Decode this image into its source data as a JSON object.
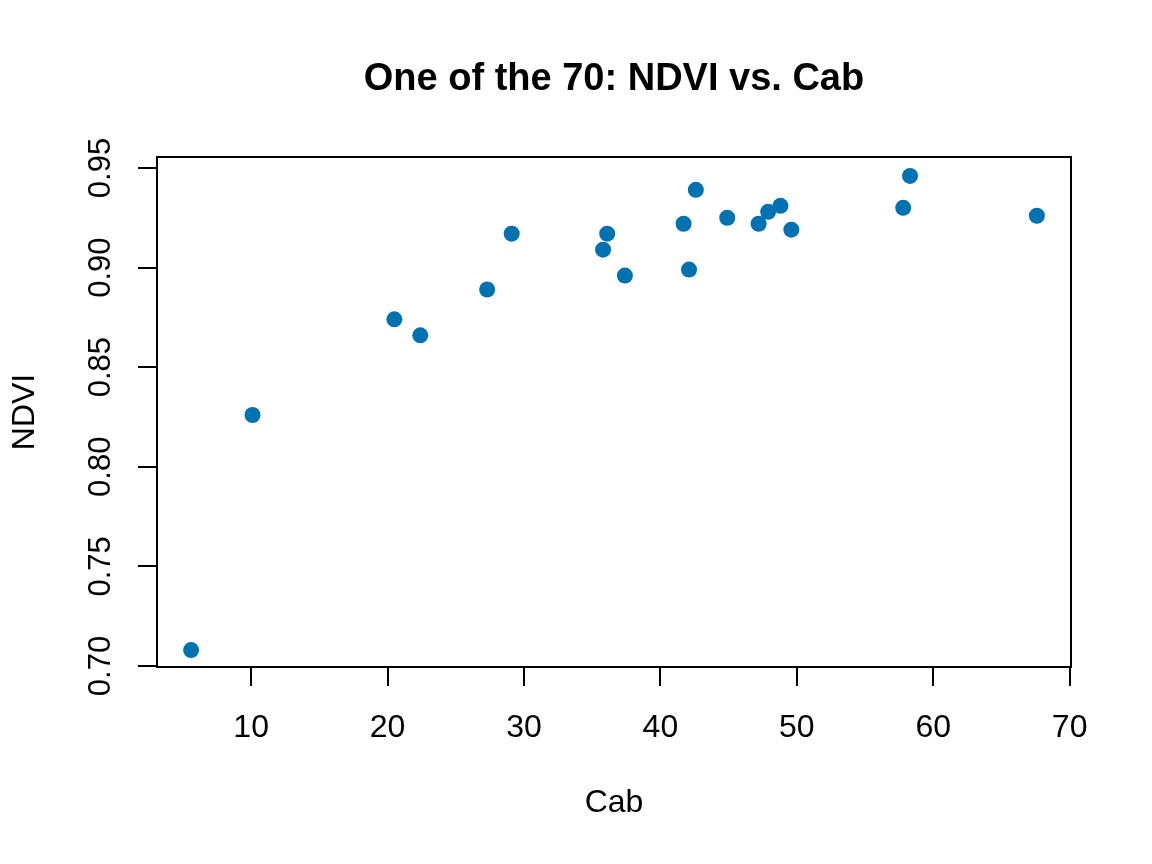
{
  "chart_data": {
    "type": "scatter",
    "title": "One of the 70: NDVI vs. Cab",
    "xlabel": "Cab",
    "ylabel": "NDVI",
    "x": [
      5.6,
      10.1,
      20.5,
      22.4,
      27.3,
      29.1,
      35.8,
      36.1,
      37.4,
      41.7,
      42.1,
      42.6,
      44.9,
      47.2,
      47.9,
      48.8,
      49.6,
      57.8,
      58.3,
      67.6
    ],
    "values": [
      0.708,
      0.826,
      0.874,
      0.866,
      0.889,
      0.917,
      0.909,
      0.917,
      0.896,
      0.922,
      0.899,
      0.939,
      0.925,
      0.922,
      0.928,
      0.931,
      0.919,
      0.93,
      0.946,
      0.926
    ],
    "color": "#0072b2",
    "marker": "circle",
    "xlim": [
      3.1,
      70.1
    ],
    "ylim": [
      0.6995,
      0.9555
    ],
    "xticks": [
      10,
      20,
      30,
      40,
      50,
      60,
      70
    ],
    "yticks": [
      {
        "value": 0.7,
        "label": "0.70"
      },
      0.75,
      {
        "value": 0.8,
        "label": "0.80"
      },
      0.85,
      {
        "value": 0.9,
        "label": "0.90"
      },
      0.95
    ]
  }
}
